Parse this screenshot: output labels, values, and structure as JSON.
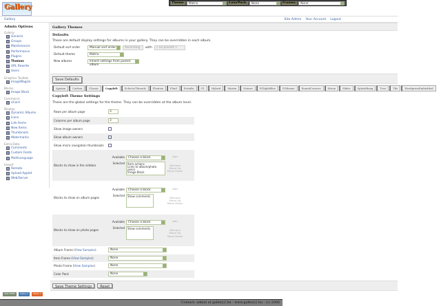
{
  "topbar": {
    "theme_label": "Theme:",
    "theme_value": "Matrix",
    "colorpack_label": "ColorPack:",
    "colorpack_value": "None",
    "frames_label": "Frames:",
    "frames_value": "None"
  },
  "logo_text": "Gallery",
  "breadcrumb": "Gallery",
  "header_links": [
    "Site Admin",
    "Your Account",
    "Logout"
  ],
  "sidebar": {
    "title": "Admin Options",
    "groups": [
      {
        "label": "Gallery",
        "items": [
          "General",
          "Groups",
          "Maintenance",
          "Performance",
          "Plugins",
          "Themes",
          "URL Rewrite",
          "Users"
        ]
      },
      {
        "label": "Graphics Toolkits",
        "items": [
          "ImageMagick"
        ]
      },
      {
        "label": "Blocks",
        "items": [
          "Image Block"
        ]
      },
      {
        "label": "Commerce",
        "items": [
          "eCard"
        ]
      },
      {
        "label": "Display",
        "items": [
          "Dynamic Albums",
          "Icons",
          "Link Items",
          "New Items",
          "Thumbnails",
          "Watermarks"
        ]
      },
      {
        "label": "Extra Data",
        "items": [
          "Comments",
          "Custom Fields",
          "MultiLanguage"
        ]
      },
      {
        "label": "Import",
        "items": [
          "Remote",
          "Upload Applet",
          "Web/Server"
        ]
      }
    ],
    "current": "Themes"
  },
  "main": {
    "title": "Gallery Themes",
    "defaults_title": "Defaults",
    "defaults_desc": "These are default display settings for albums in your gallery. They can be overridden in each album.",
    "sort_label": "Default sort order",
    "sort_value": "Manual sort order",
    "sort_dir": "Ascending",
    "with_label": "with",
    "with_value": "« no presort »",
    "theme_label": "Default theme",
    "theme_value": "Matrix",
    "new_albums_label": "New albums",
    "new_albums_value": "Inherit settings from parent album",
    "save_defaults": "Save Defaults"
  },
  "tabs": [
    "Ajaxian",
    "Carbon",
    "Classic",
    "Copyleft",
    "EclecticThreads",
    "Floatrix",
    "Fluid",
    "Fortalis",
    "G1",
    "Hybrid",
    "Matrix",
    "Nature",
    "PGlightBlue",
    "PGtheme",
    "RoundCorners",
    "Siriux",
    "Slider",
    "SplashBang",
    "Tree",
    "Tile",
    "WordpressEmbedded"
  ],
  "active_tab": "Copyleft",
  "settings": {
    "title": "Copyleft Theme Settings",
    "desc": "These are the global settings for the theme. They can be overridden at the album level.",
    "rows_label": "Rows per album page",
    "rows_value": "3",
    "cols_label": "Columns per album page",
    "cols_value": "3",
    "image_owners_label": "Show image owners",
    "image_owners": false,
    "album_owners_label": "Show album owners",
    "album_owners": true,
    "micro_nav_label": "Show micro navigation thumbnails",
    "micro_nav": false,
    "available_label": "Available",
    "selected_label": "Selected",
    "choose": "Choose a block",
    "add": "Add",
    "remove": "Remove",
    "move_up": "Move Up",
    "move_down": "Move Down",
    "sidebar_blocks_label": "Blocks to show in the sidebar",
    "sidebar_blocks": [
      "Item actions",
      "Links to album/photo peers",
      "Image Block"
    ],
    "album_blocks_label": "Blocks to show on album pages",
    "album_blocks": [
      "Show comments"
    ],
    "photo_blocks_label": "Blocks to show on photo pages",
    "photo_blocks": [
      "Show comments"
    ],
    "album_frame_label": "Album Frame",
    "item_frame_label": "Item Frame",
    "photo_frame_label": "Photo Frame",
    "view_samples": "View Samples",
    "album_frame": "None",
    "item_frame": "None",
    "photo_frame": "None",
    "color_pack_label": "Color Pack",
    "color_pack": "None",
    "save": "Save Theme Settings",
    "reset": "Reset"
  },
  "badges": [
    "Valid XHTML",
    "Gallery 2",
    "Gallery 2"
  ],
  "footer": "Contact: admin at gallery2.hu - www.gallery2.hu - (c) 2006"
}
